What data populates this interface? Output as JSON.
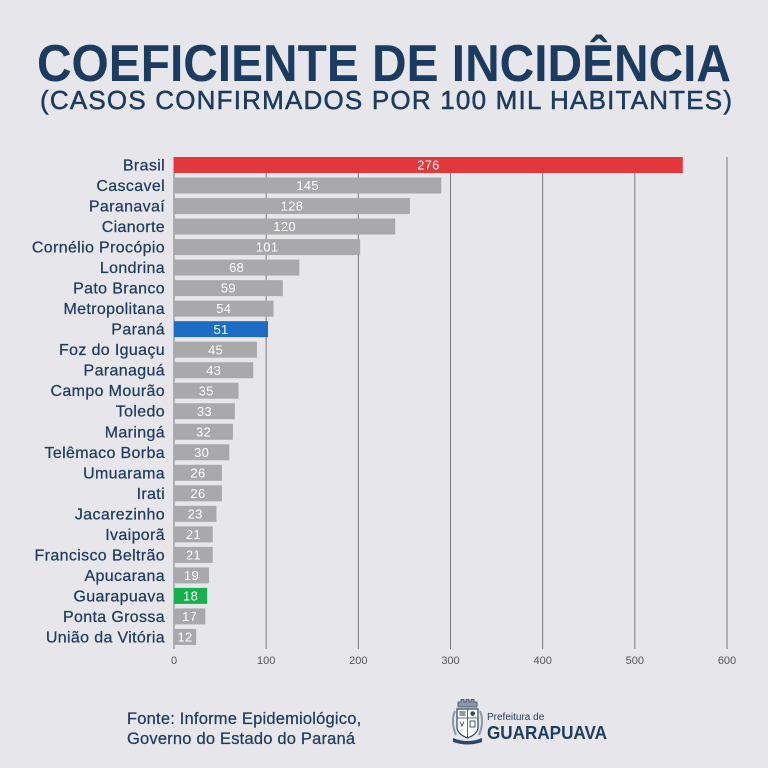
{
  "chart_data": {
    "type": "bar",
    "orientation": "horizontal",
    "title": "COEFICIENTE DE INCIDÊNCIA",
    "subtitle": "(CASOS CONFIRMADOS POR 100 MIL HABITANTES)",
    "xlabel": "",
    "ylabel": "",
    "categories": [
      "Brasil",
      "Cascavel",
      "Paranavaí",
      "Cianorte",
      "Cornélio Procópio",
      "Londrina",
      "Pato Branco",
      "Metropolitana",
      "Paraná",
      "Foz do Iguaçu",
      "Paranaguá",
      "Campo Mourão",
      "Toledo",
      "Maringá",
      "Telêmaco Borba",
      "Umuarama",
      "Irati",
      "Jacarezinho",
      "Ivaiporã",
      "Francisco Beltrão",
      "Apucarana",
      "Guarapuava",
      "Ponta Grossa",
      "União da Vitória"
    ],
    "values": [
      276,
      145,
      128,
      120,
      101,
      68,
      59,
      54,
      51,
      45,
      43,
      35,
      33,
      32,
      30,
      26,
      26,
      23,
      21,
      21,
      19,
      18,
      17,
      12
    ],
    "xlim": [
      0,
      600
    ],
    "xticks": [
      0,
      100,
      200,
      300,
      400,
      500,
      600
    ],
    "grid": true,
    "bar_color": "#a9a9ab",
    "highlight_colors": {
      "Brasil": "#e2373b",
      "Paraná": "#1e6dc5",
      "Guarapuava": "#18b04a"
    },
    "value_label_color": "#ffffff"
  },
  "footer": {
    "source_line1": "Fonte: Informe Epidemiológico,",
    "source_line2": "Governo do Estado do Paraná"
  },
  "logo": {
    "icon": "coat-of-arms-icon",
    "line1": "Prefeitura de",
    "line2": "GUARAPUAVA"
  },
  "colors": {
    "background": "#e7e7eb",
    "title": "#1c3b60",
    "text": "#1f3c61"
  }
}
